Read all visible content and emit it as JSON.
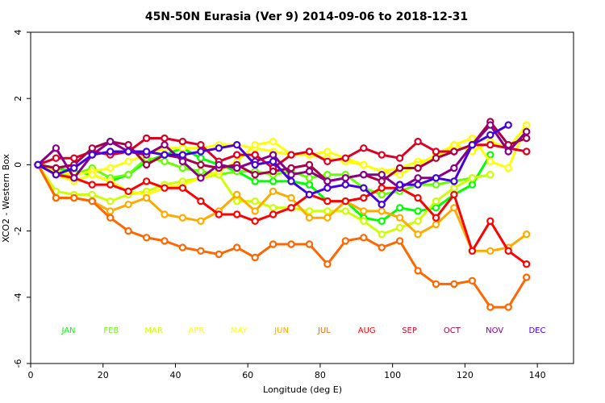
{
  "chart_data": {
    "type": "line",
    "title": "45N-50N Eurasia (Ver 9)   2014-09-06 to 2018-12-31",
    "xlabel": "Longitude (deg E)",
    "ylabel": "XCO2 - Western Box",
    "xlim": [
      0,
      150
    ],
    "ylim": [
      -6,
      4
    ],
    "xticks": [
      0,
      20,
      40,
      60,
      80,
      100,
      120,
      140
    ],
    "yticks": [
      -6,
      -4,
      -2,
      0,
      2,
      4
    ],
    "grid": false,
    "legend_position": "bottom",
    "series": [
      {
        "name": "JAN",
        "color": "#00ff00",
        "x": [
          2,
          7,
          12,
          17,
          22,
          27,
          32,
          37,
          42,
          47,
          52,
          57,
          62,
          67,
          72,
          77,
          82,
          87,
          92,
          97,
          102,
          107,
          112,
          117,
          122,
          127,
          132,
          137
        ],
        "y": [
          0,
          -0.1,
          -0.2,
          -0.3,
          -0.5,
          -0.3,
          0.1,
          0.3,
          0.5,
          0.2,
          0.0,
          -0.2,
          -0.5,
          -0.5,
          -0.5,
          -0.6,
          -1.1,
          -1.1,
          -1.6,
          -1.7,
          -1.3,
          -1.4,
          -1.3,
          -0.9,
          -0.6,
          0.3,
          null,
          null
        ]
      },
      {
        "name": "FEB",
        "color": "#66ff00",
        "x": [
          2,
          7,
          12,
          17,
          22,
          27,
          32,
          37,
          42,
          47,
          52,
          57,
          62,
          67,
          72,
          77,
          82,
          87,
          92,
          97,
          102,
          107,
          112,
          117,
          122,
          127,
          132,
          137
        ],
        "y": [
          0,
          -0.3,
          -0.3,
          -0.1,
          -0.4,
          -0.3,
          0.2,
          0.1,
          -0.1,
          -0.2,
          -0.3,
          -0.2,
          -0.2,
          -0.3,
          -0.2,
          -0.4,
          -0.3,
          -0.3,
          -0.7,
          -0.9,
          -0.8,
          -0.6,
          -0.6,
          -0.5,
          -0.4,
          -0.3,
          null,
          null
        ]
      },
      {
        "name": "MAR",
        "color": "#ccff00",
        "x": [
          2,
          7,
          12,
          17,
          22,
          27,
          32,
          37,
          42,
          47,
          52,
          57,
          62,
          67,
          72,
          77,
          82,
          87,
          92,
          97,
          102,
          107,
          112,
          117,
          122,
          127,
          132,
          137
        ],
        "y": [
          0,
          -0.8,
          -0.9,
          -0.9,
          -1.1,
          -0.9,
          -0.8,
          -0.6,
          -0.5,
          -0.4,
          -0.3,
          -1.1,
          -1.1,
          -1.3,
          -1.3,
          -1.4,
          -1.4,
          -1.4,
          -1.7,
          -2.1,
          -1.9,
          -1.7,
          -1.1,
          -0.7,
          -0.4,
          -0.3,
          null,
          null
        ]
      },
      {
        "name": "APR",
        "color": "#ffff00",
        "x": [
          2,
          7,
          12,
          17,
          22,
          27,
          32,
          37,
          42,
          47,
          52,
          57,
          62,
          67,
          72,
          77,
          82,
          87,
          92,
          97,
          102,
          107,
          112,
          117,
          122,
          127,
          132,
          137
        ],
        "y": [
          0,
          -0.2,
          -0.3,
          -0.2,
          -0.1,
          0.1,
          0.3,
          0.5,
          0.5,
          0.5,
          0.6,
          0.6,
          0.5,
          0.4,
          0.3,
          0.3,
          0.2,
          0.1,
          0.0,
          -0.2,
          -0.1,
          0.1,
          0.2,
          0.6,
          0.8,
          0.1,
          -0.1,
          1.2
        ]
      },
      {
        "name": "MAY",
        "color": "#ffff00",
        "x": [
          2,
          7,
          12,
          17,
          22,
          27,
          32,
          37,
          42,
          47,
          52,
          57,
          62,
          67,
          72,
          77,
          82,
          87,
          92,
          97,
          102,
          107,
          112,
          117,
          122,
          127,
          132,
          137
        ],
        "y": [
          0,
          -0.3,
          -0.5,
          -0.3,
          -0.5,
          -0.8,
          -0.9,
          -0.7,
          -0.6,
          -0.4,
          -0.2,
          0.1,
          0.6,
          0.7,
          0.3,
          0.3,
          0.4,
          0.2,
          0.0,
          -0.2,
          -0.3,
          0.0,
          0.3,
          0.6,
          0.4,
          0.7,
          0.5,
          1.2
        ]
      },
      {
        "name": "JUN",
        "color": "#ffaa00",
        "x": [
          2,
          7,
          12,
          17,
          22,
          27,
          32,
          37,
          42,
          47,
          52,
          57,
          62,
          67,
          72,
          77,
          82,
          87,
          92,
          97,
          102,
          107,
          112,
          117,
          122,
          127,
          132,
          137
        ],
        "y": [
          0,
          -1.0,
          -1.0,
          -1.1,
          -1.4,
          -1.2,
          -1.0,
          -1.5,
          -1.6,
          -1.7,
          -1.4,
          -0.9,
          -1.4,
          -0.8,
          -1.0,
          -1.6,
          -1.6,
          -1.1,
          -1.4,
          -1.4,
          -1.6,
          -2.1,
          -1.8,
          -1.3,
          -2.6,
          -2.6,
          -2.5,
          -2.1
        ]
      },
      {
        "name": "JUL",
        "color": "#ff6600",
        "x": [
          2,
          7,
          12,
          17,
          22,
          27,
          32,
          37,
          42,
          47,
          52,
          57,
          62,
          67,
          72,
          77,
          82,
          87,
          92,
          97,
          102,
          107,
          112,
          117,
          122,
          127,
          132,
          137
        ],
        "y": [
          0,
          -1.0,
          -1.0,
          -1.1,
          -1.6,
          -2.0,
          -2.2,
          -2.3,
          -2.5,
          -2.6,
          -2.7,
          -2.5,
          -2.8,
          -2.4,
          -2.4,
          -2.4,
          -3.0,
          -2.3,
          -2.2,
          -2.5,
          -2.3,
          -3.2,
          -3.6,
          -3.6,
          -3.5,
          -4.3,
          -4.3,
          -3.4
        ]
      },
      {
        "name": "AUG",
        "color": "#ff0000",
        "x": [
          2,
          7,
          12,
          17,
          22,
          27,
          32,
          37,
          42,
          47,
          52,
          57,
          62,
          67,
          72,
          77,
          82,
          87,
          92,
          97,
          102,
          107,
          112,
          117,
          122,
          127,
          132,
          137
        ],
        "y": [
          0,
          -0.3,
          -0.4,
          -0.6,
          -0.6,
          -0.8,
          -0.5,
          -0.7,
          -0.7,
          -1.1,
          -1.5,
          -1.5,
          -1.7,
          -1.5,
          -1.3,
          -0.9,
          -1.1,
          -1.1,
          -1.0,
          -0.7,
          -0.7,
          -1.0,
          -1.6,
          -0.9,
          -2.6,
          -1.7,
          -2.6,
          -3.0
        ]
      },
      {
        "name": "SEP",
        "color": "#dd0022",
        "x": [
          2,
          7,
          12,
          17,
          22,
          27,
          32,
          37,
          42,
          47,
          52,
          57,
          62,
          67,
          72,
          77,
          82,
          87,
          92,
          97,
          102,
          107,
          112,
          117,
          122,
          127,
          132,
          137
        ],
        "y": [
          0,
          0.2,
          0.2,
          0.4,
          0.3,
          0.4,
          0.8,
          0.8,
          0.7,
          0.6,
          0.1,
          0.3,
          0.3,
          -0.1,
          0.3,
          0.4,
          0.1,
          0.2,
          0.5,
          0.3,
          0.2,
          0.7,
          0.4,
          0.4,
          0.6,
          0.6,
          0.5,
          0.4
        ]
      },
      {
        "name": "OCT",
        "color": "#aa0044",
        "x": [
          2,
          7,
          12,
          17,
          22,
          27,
          32,
          37,
          42,
          47,
          52,
          57,
          62,
          67,
          72,
          77,
          82,
          87,
          92,
          97,
          102,
          107,
          112,
          117,
          122,
          127,
          132,
          137
        ],
        "y": [
          0,
          -0.1,
          0.0,
          0.5,
          0.7,
          0.6,
          0.0,
          0.3,
          0.2,
          0.0,
          -0.1,
          0.0,
          -0.3,
          -0.2,
          -0.1,
          0.0,
          -0.5,
          -0.4,
          -0.3,
          -0.5,
          -0.1,
          -0.1,
          0.2,
          0.4,
          0.6,
          1.3,
          0.6,
          0.8
        ]
      },
      {
        "name": "NOV",
        "color": "#880088",
        "x": [
          2,
          7,
          12,
          17,
          22,
          27,
          32,
          37,
          42,
          47,
          52,
          57,
          62,
          67,
          72,
          77,
          82,
          87,
          92,
          97,
          102,
          107,
          112,
          117,
          122,
          127,
          132,
          137
        ],
        "y": [
          0,
          0.5,
          -0.4,
          0.3,
          0.7,
          0.4,
          0.3,
          0.6,
          0.1,
          -0.4,
          0.0,
          -0.1,
          0.1,
          0.3,
          -0.3,
          -0.2,
          -0.5,
          -0.4,
          -0.3,
          -0.3,
          -0.7,
          -0.4,
          -0.4,
          -0.1,
          0.6,
          1.2,
          0.4,
          1.0
        ]
      },
      {
        "name": "DEC",
        "color": "#4400dd",
        "x": [
          2,
          7,
          12,
          17,
          22,
          27,
          32,
          37,
          42,
          47,
          52,
          57,
          62,
          67,
          72,
          77,
          82,
          87,
          92,
          97,
          102,
          107,
          112,
          117,
          122,
          127,
          132,
          137
        ],
        "y": [
          0,
          -0.3,
          -0.1,
          0.3,
          0.4,
          0.4,
          0.4,
          0.3,
          0.3,
          0.4,
          0.5,
          0.6,
          0.0,
          0.1,
          -0.5,
          -0.9,
          -0.7,
          -0.6,
          -0.7,
          -1.2,
          -0.6,
          -0.6,
          -0.4,
          -0.5,
          0.6,
          0.9,
          1.2,
          null
        ]
      }
    ]
  }
}
